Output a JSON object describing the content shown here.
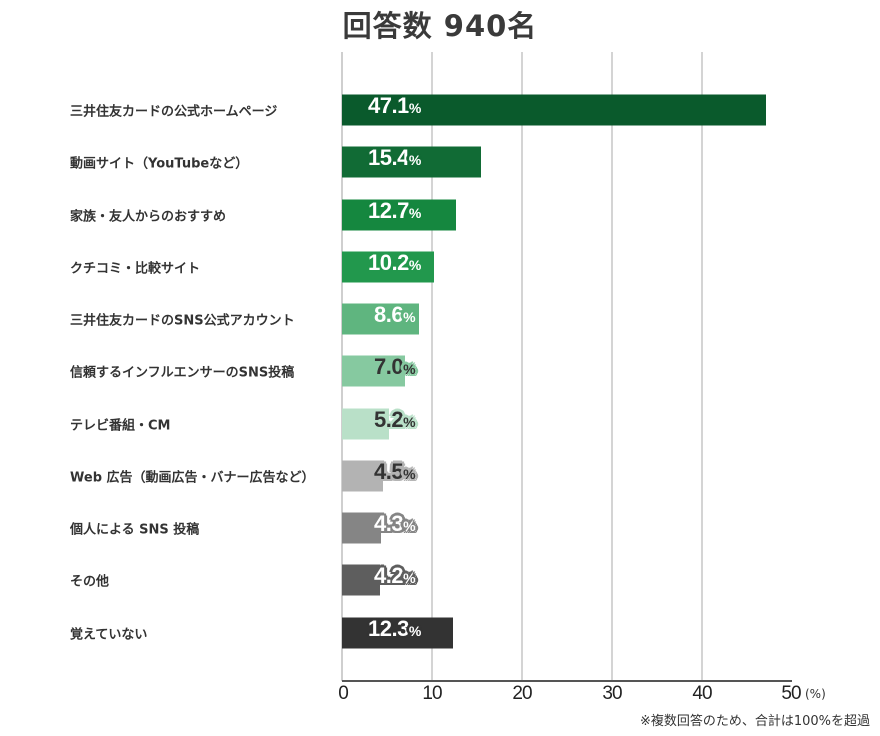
{
  "header": {
    "title": "回答数 940名"
  },
  "footer": {
    "note": "※複数回答のため、合計は100%を超過",
    "unit": "(%)"
  },
  "axis": {
    "ticks": [
      "0",
      "10",
      "20",
      "30",
      "40",
      "50"
    ]
  },
  "rows": [
    {
      "label": "三井住友カードの公式ホームページ",
      "value": "47.1",
      "pct": "%",
      "color": "#0a5a2c",
      "text_color": "#ffffff",
      "halo": "#0a5a2c"
    },
    {
      "label": "動画サイト（YouTubeなど）",
      "value": "15.4",
      "pct": "%",
      "color": "#116b35",
      "text_color": "#ffffff",
      "halo": "#116b35"
    },
    {
      "label": "家族・友人からのおすすめ",
      "value": "12.7",
      "pct": "%",
      "color": "#15873f",
      "text_color": "#ffffff",
      "halo": "#15873f"
    },
    {
      "label": "クチコミ・比較サイト",
      "value": "10.2",
      "pct": "%",
      "color": "#22984d",
      "text_color": "#ffffff",
      "halo": "#22984d"
    },
    {
      "label": "三井住友カードのSNS公式アカウント",
      "value": "8.6",
      "pct": "%",
      "color": "#5fb57f",
      "text_color": "#ffffff",
      "halo": "#5fb57f"
    },
    {
      "label": "信頼するインフルエンサーのSNS投稿",
      "value": "7.0",
      "pct": "%",
      "color": "#86c9a0",
      "text_color": "#333333",
      "halo": "#86c9a0"
    },
    {
      "label": "テレビ番組・CM",
      "value": "5.2",
      "pct": "%",
      "color": "#b9e0c8",
      "text_color": "#333333",
      "halo": "#b9e0c8"
    },
    {
      "label": "Web 広告（動画広告・バナー広告など）",
      "value": "4.5",
      "pct": "%",
      "color": "#b3b3b3",
      "text_color": "#333333",
      "halo": "#b3b3b3"
    },
    {
      "label": "個人による SNS 投稿",
      "value": "4.3",
      "pct": "%",
      "color": "#858585",
      "text_color": "#ffffff",
      "halo": "#858585"
    },
    {
      "label": "その他",
      "value": "4.2",
      "pct": "%",
      "color": "#5e5e5e",
      "text_color": "#ffffff",
      "halo": "#5e5e5e"
    },
    {
      "label": "覚えていない",
      "value": "12.3",
      "pct": "%",
      "color": "#333333",
      "text_color": "#ffffff",
      "halo": "#333333"
    }
  ],
  "chart_data": {
    "type": "bar",
    "orientation": "horizontal",
    "title": "回答数 940名",
    "categories": [
      "三井住友カードの公式ホームページ",
      "動画サイト（YouTubeなど）",
      "家族・友人からのおすすめ",
      "クチコミ・比較サイト",
      "三井住友カードのSNS公式アカウント",
      "信頼するインフルエンサーのSNS投稿",
      "テレビ番組・CM",
      "Web 広告（動画広告・バナー広告など）",
      "個人による SNS 投稿",
      "その他",
      "覚えていない"
    ],
    "values": [
      47.1,
      15.4,
      12.7,
      10.2,
      8.6,
      7.0,
      5.2,
      4.5,
      4.3,
      4.2,
      12.3
    ],
    "xlabel": "(%)",
    "ylabel": "",
    "xlim": [
      0,
      50
    ],
    "xticks": [
      0,
      10,
      20,
      30,
      40,
      50
    ],
    "grid": true,
    "legend": null,
    "annotations": [
      "※複数回答のため、合計は100%を超過"
    ]
  }
}
